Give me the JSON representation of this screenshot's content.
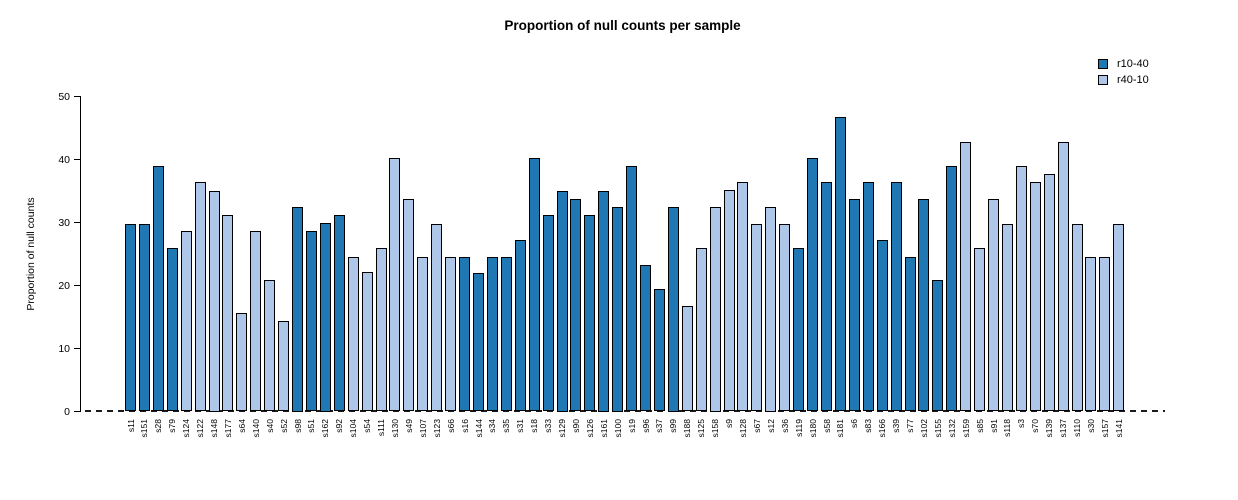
{
  "chart_data": {
    "type": "bar",
    "title": "Proportion of null counts per sample",
    "ylabel": "Proportion of null counts",
    "xlabel": "",
    "ylim": [
      0,
      50
    ],
    "yticks": [
      0,
      10,
      20,
      30,
      40,
      50
    ],
    "grid": false,
    "legend_position": "top-right",
    "baseline_style": "dashed",
    "series": [
      {
        "name": "r10-40",
        "color": "#1f77b4"
      },
      {
        "name": "r40-10",
        "color": "#aec7e8"
      }
    ],
    "samples": [
      {
        "name": "s11",
        "value": 29.8,
        "series": "r10-40"
      },
      {
        "name": "s151",
        "value": 29.8,
        "series": "r10-40"
      },
      {
        "name": "s28",
        "value": 39.0,
        "series": "r10-40"
      },
      {
        "name": "s79",
        "value": 26.0,
        "series": "r10-40"
      },
      {
        "name": "s124",
        "value": 28.6,
        "series": "r40-10"
      },
      {
        "name": "s122",
        "value": 36.4,
        "series": "r40-10"
      },
      {
        "name": "s148",
        "value": 35.0,
        "series": "r40-10"
      },
      {
        "name": "s177",
        "value": 31.2,
        "series": "r40-10"
      },
      {
        "name": "s64",
        "value": 15.7,
        "series": "r40-10"
      },
      {
        "name": "s140",
        "value": 28.6,
        "series": "r40-10"
      },
      {
        "name": "s40",
        "value": 20.8,
        "series": "r40-10"
      },
      {
        "name": "s52",
        "value": 14.4,
        "series": "r40-10"
      },
      {
        "name": "s98",
        "value": 32.5,
        "series": "r10-40"
      },
      {
        "name": "s51",
        "value": 28.6,
        "series": "r10-40"
      },
      {
        "name": "s162",
        "value": 30.0,
        "series": "r10-40"
      },
      {
        "name": "s92",
        "value": 31.2,
        "series": "r10-40"
      },
      {
        "name": "s104",
        "value": 24.6,
        "series": "r40-10"
      },
      {
        "name": "s54",
        "value": 22.1,
        "series": "r40-10"
      },
      {
        "name": "s111",
        "value": 26.0,
        "series": "r40-10"
      },
      {
        "name": "s130",
        "value": 40.2,
        "series": "r40-10"
      },
      {
        "name": "s49",
        "value": 33.8,
        "series": "r40-10"
      },
      {
        "name": "s107",
        "value": 24.6,
        "series": "r40-10"
      },
      {
        "name": "s123",
        "value": 29.8,
        "series": "r40-10"
      },
      {
        "name": "s66",
        "value": 24.6,
        "series": "r40-10"
      },
      {
        "name": "s16",
        "value": 24.6,
        "series": "r10-40"
      },
      {
        "name": "s144",
        "value": 22.0,
        "series": "r10-40"
      },
      {
        "name": "s34",
        "value": 24.6,
        "series": "r10-40"
      },
      {
        "name": "s35",
        "value": 24.6,
        "series": "r10-40"
      },
      {
        "name": "s31",
        "value": 27.2,
        "series": "r10-40"
      },
      {
        "name": "s18",
        "value": 40.2,
        "series": "r10-40"
      },
      {
        "name": "s33",
        "value": 31.2,
        "series": "r10-40"
      },
      {
        "name": "s129",
        "value": 35.0,
        "series": "r10-40"
      },
      {
        "name": "s90",
        "value": 33.8,
        "series": "r10-40"
      },
      {
        "name": "s126",
        "value": 31.2,
        "series": "r10-40"
      },
      {
        "name": "s161",
        "value": 35.0,
        "series": "r10-40"
      },
      {
        "name": "s100",
        "value": 32.5,
        "series": "r10-40"
      },
      {
        "name": "s19",
        "value": 38.9,
        "series": "r10-40"
      },
      {
        "name": "s96",
        "value": 23.2,
        "series": "r10-40"
      },
      {
        "name": "s37",
        "value": 19.4,
        "series": "r10-40"
      },
      {
        "name": "s99",
        "value": 32.5,
        "series": "r10-40"
      },
      {
        "name": "s188",
        "value": 16.7,
        "series": "r40-10"
      },
      {
        "name": "s125",
        "value": 25.9,
        "series": "r40-10"
      },
      {
        "name": "s158",
        "value": 32.5,
        "series": "r40-10"
      },
      {
        "name": "s9",
        "value": 35.1,
        "series": "r40-10"
      },
      {
        "name": "s128",
        "value": 36.5,
        "series": "r40-10"
      },
      {
        "name": "s67",
        "value": 29.8,
        "series": "r40-10"
      },
      {
        "name": "s12",
        "value": 32.5,
        "series": "r40-10"
      },
      {
        "name": "s36",
        "value": 29.8,
        "series": "r40-10"
      },
      {
        "name": "s119",
        "value": 25.9,
        "series": "r10-40"
      },
      {
        "name": "s180",
        "value": 40.2,
        "series": "r10-40"
      },
      {
        "name": "s58",
        "value": 36.5,
        "series": "r10-40"
      },
      {
        "name": "s181",
        "value": 46.8,
        "series": "r10-40"
      },
      {
        "name": "s6",
        "value": 33.8,
        "series": "r10-40"
      },
      {
        "name": "s83",
        "value": 36.5,
        "series": "r10-40"
      },
      {
        "name": "s166",
        "value": 27.2,
        "series": "r10-40"
      },
      {
        "name": "s39",
        "value": 36.5,
        "series": "r10-40"
      },
      {
        "name": "s77",
        "value": 24.6,
        "series": "r10-40"
      },
      {
        "name": "s102",
        "value": 33.8,
        "series": "r10-40"
      },
      {
        "name": "s155",
        "value": 20.8,
        "series": "r10-40"
      },
      {
        "name": "s132",
        "value": 38.9,
        "series": "r10-40"
      },
      {
        "name": "s159",
        "value": 42.8,
        "series": "r40-10"
      },
      {
        "name": "s85",
        "value": 26.0,
        "series": "r40-10"
      },
      {
        "name": "s91",
        "value": 33.8,
        "series": "r40-10"
      },
      {
        "name": "s118",
        "value": 29.8,
        "series": "r40-10"
      },
      {
        "name": "s3",
        "value": 38.9,
        "series": "r40-10"
      },
      {
        "name": "s70",
        "value": 36.5,
        "series": "r40-10"
      },
      {
        "name": "s139",
        "value": 37.7,
        "series": "r40-10"
      },
      {
        "name": "s137",
        "value": 42.8,
        "series": "r40-10"
      },
      {
        "name": "s110",
        "value": 29.8,
        "series": "r40-10"
      },
      {
        "name": "s30",
        "value": 24.6,
        "series": "r40-10"
      },
      {
        "name": "s157",
        "value": 24.6,
        "series": "r40-10"
      },
      {
        "name": "s141",
        "value": 29.8,
        "series": "r40-10"
      }
    ]
  }
}
